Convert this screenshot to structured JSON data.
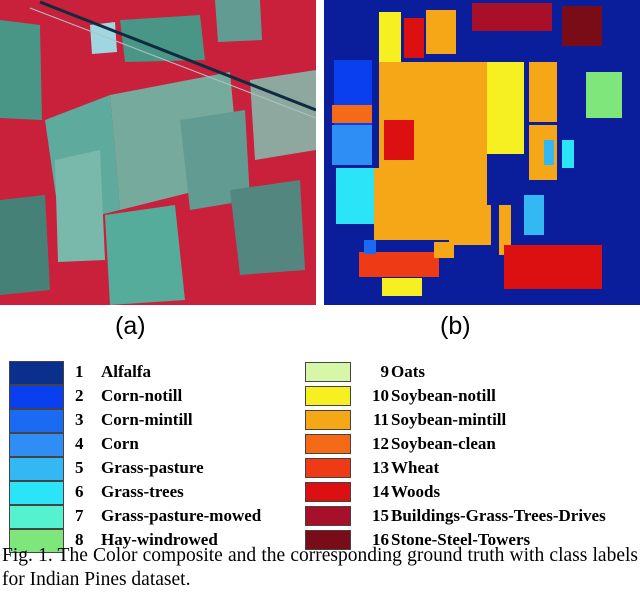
{
  "figure": {
    "sublabels": [
      "(a)",
      "(b)"
    ],
    "caption": "Fig. 1.  The Color composite and the corresponding ground truth with class labels for Indian Pines dataset."
  },
  "legend": {
    "left": [
      {
        "num": "1",
        "name": "Alfalfa",
        "color": "#0a2f8c"
      },
      {
        "num": "2",
        "name": "Corn-notill",
        "color": "#0a3ff0"
      },
      {
        "num": "3",
        "name": "Corn-mintill",
        "color": "#1a6af2"
      },
      {
        "num": "4",
        "name": "Corn",
        "color": "#2f8ef6"
      },
      {
        "num": "5",
        "name": "Grass-pasture",
        "color": "#33b8f4"
      },
      {
        "num": "6",
        "name": "Grass-trees",
        "color": "#2ce4f8"
      },
      {
        "num": "7",
        "name": "Grass-pasture-mowed",
        "color": "#55f2d0"
      },
      {
        "num": "8",
        "name": "Hay-windrowed",
        "color": "#7ee67a"
      }
    ],
    "right": [
      {
        "num": "9",
        "name": "Oats",
        "color": "#d6f6a8"
      },
      {
        "num": "10",
        "name": "Soybean-notill",
        "color": "#f6ef22"
      },
      {
        "num": "11",
        "name": "Soybean-mintill",
        "color": "#f6a718"
      },
      {
        "num": "12",
        "name": "Soybean-clean",
        "color": "#f46a16"
      },
      {
        "num": "13",
        "name": "Wheat",
        "color": "#ef3a16"
      },
      {
        "num": "14",
        "name": "Woods",
        "color": "#dc1010"
      },
      {
        "num": "15",
        "name": "Buildings-Grass-Trees-Drives",
        "color": "#a8102a"
      },
      {
        "num": "16",
        "name": "Stone-Steel-Towers",
        "color": "#7a0c18"
      }
    ]
  },
  "colors": {
    "composite_red": "#d8213e",
    "composite_cyan": "#4fc6b4",
    "ground_truth_background": "#0a1e9c"
  }
}
